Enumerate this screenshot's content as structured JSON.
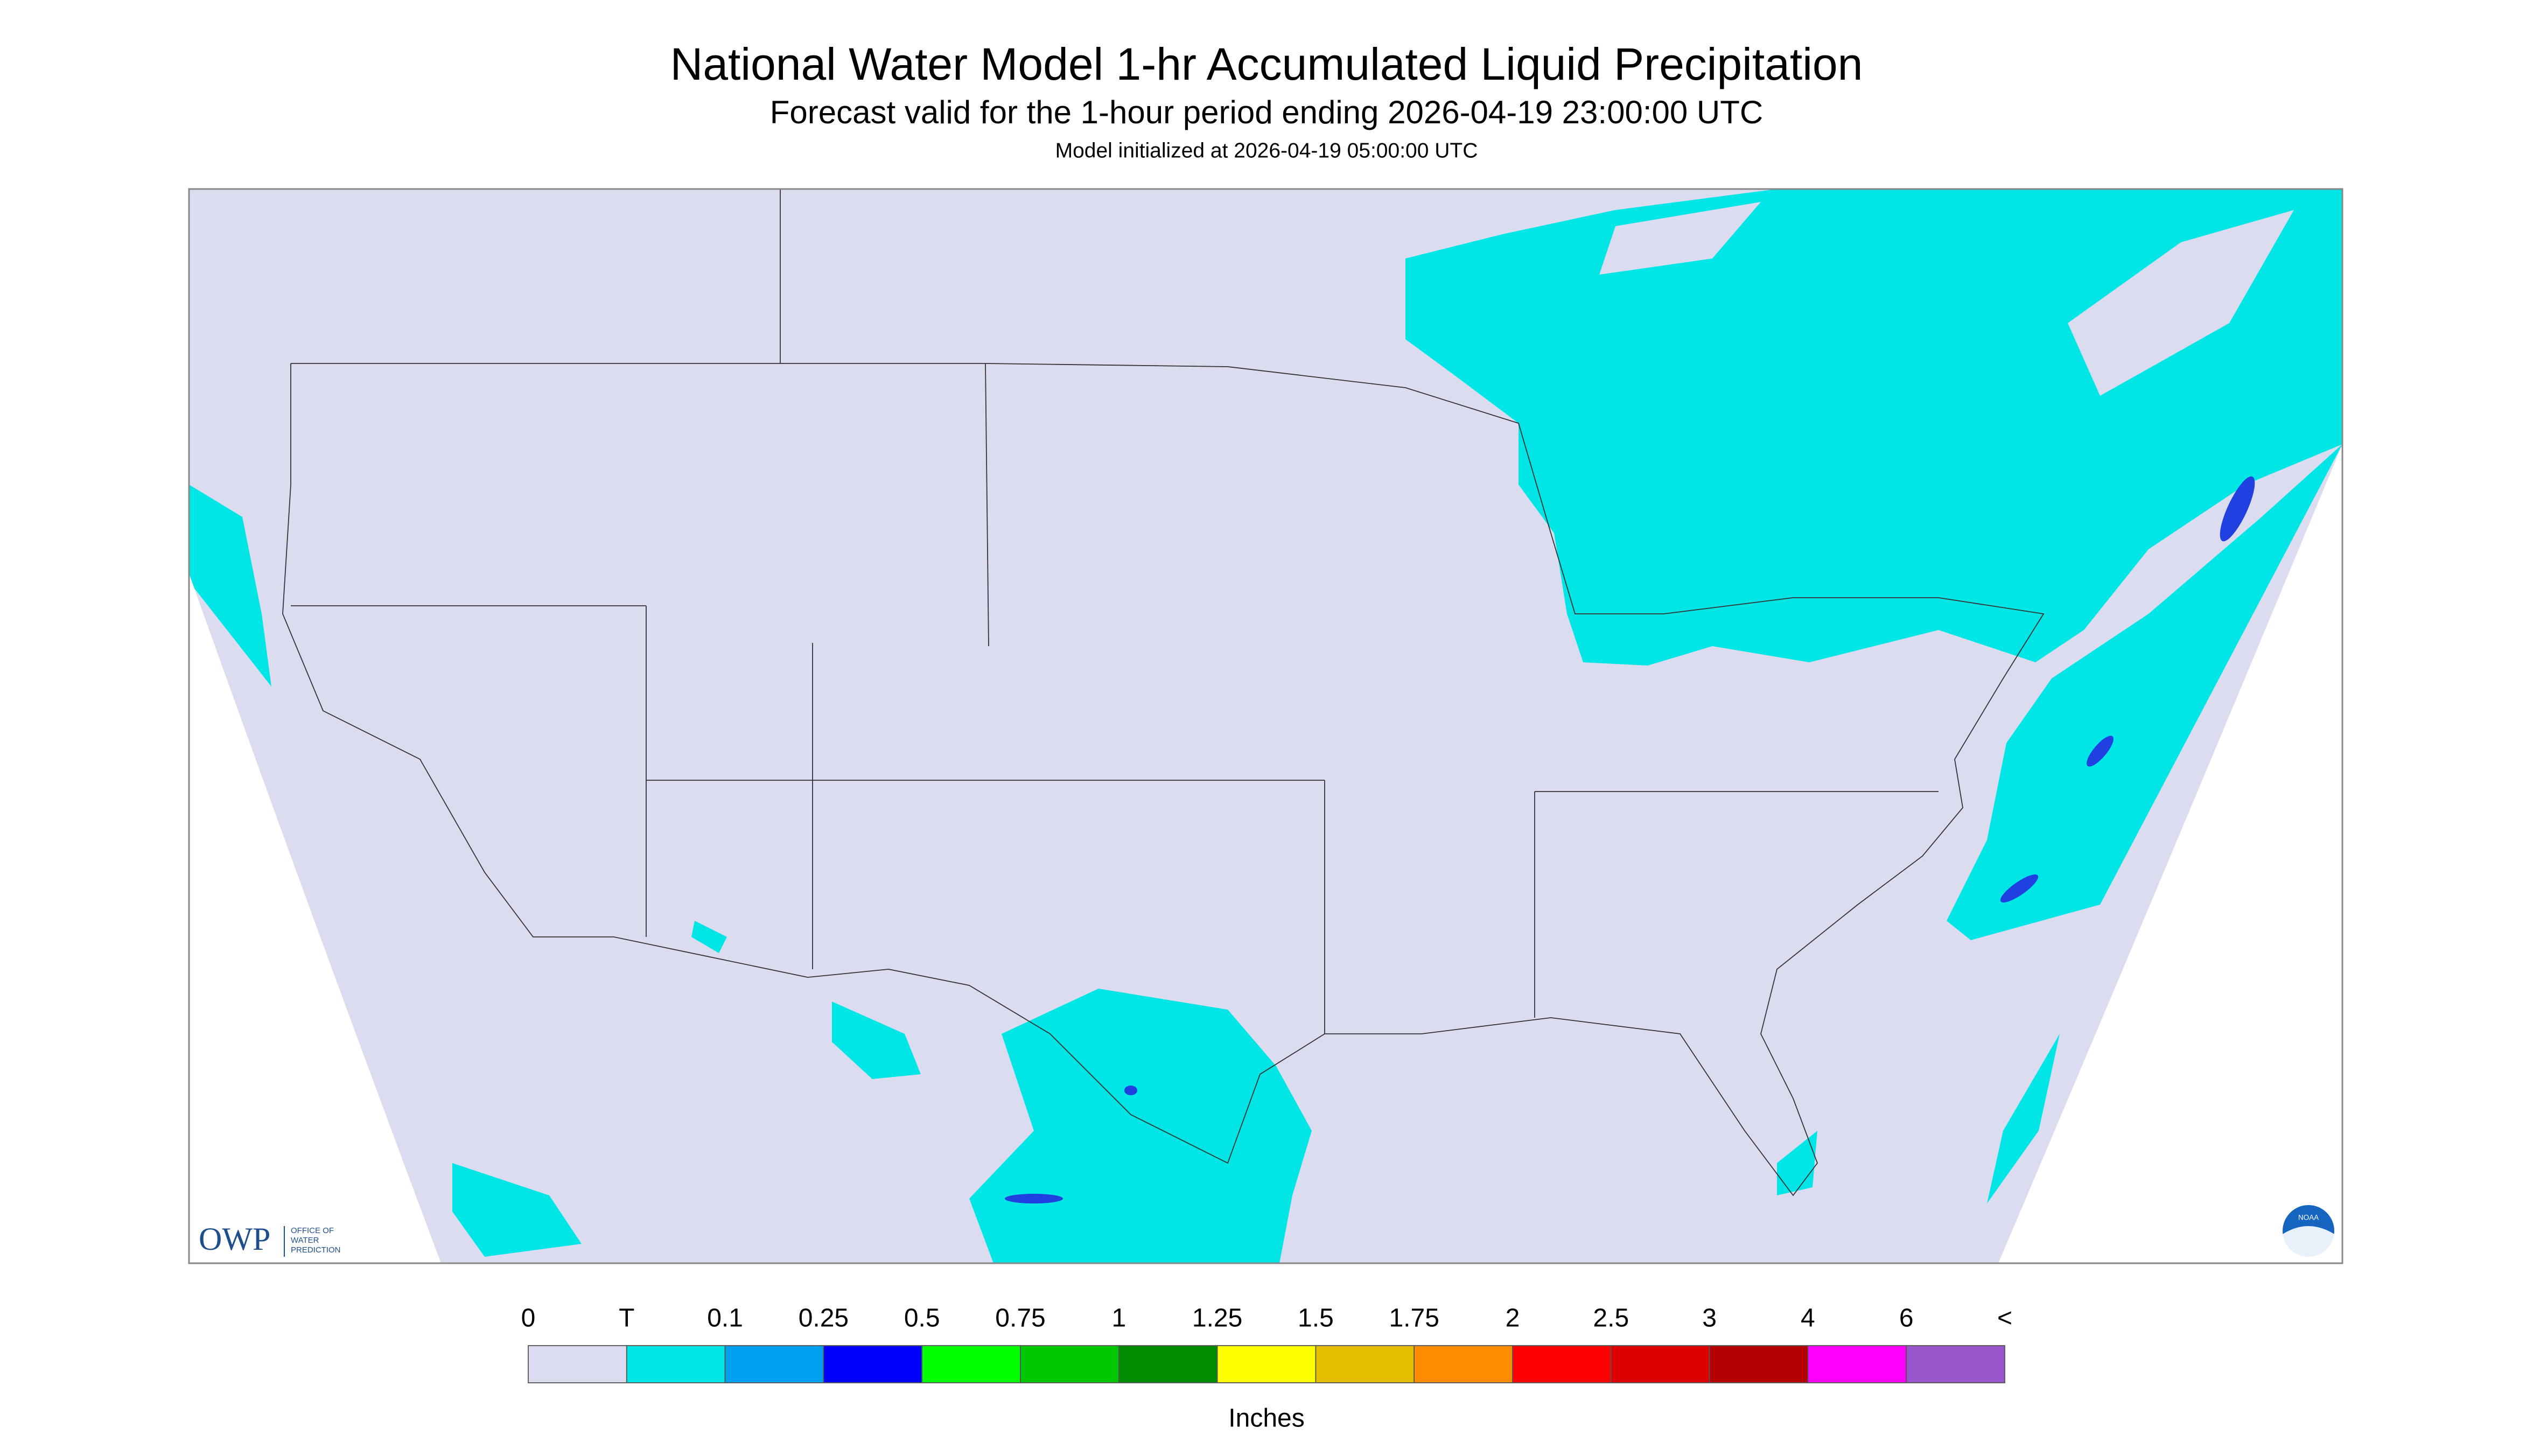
{
  "header": {
    "title": "National Water Model 1-hr Accumulated Liquid Precipitation",
    "subtitle": "Forecast valid for the 1-hour period ending 2026-04-19 23:00:00 UTC",
    "init": "Model initialized at 2026-04-19 05:00:00 UTC"
  },
  "logos": {
    "owp": "OWP",
    "owp_text": [
      "OFFICE OF",
      "WATER",
      "PREDICTION"
    ],
    "noaa": "NOAA"
  },
  "legend": {
    "labels": [
      "0",
      "T",
      "0.1",
      "0.25",
      "0.5",
      "0.75",
      "1",
      "1.25",
      "1.5",
      "1.75",
      "2",
      "2.5",
      "3",
      "4",
      "6",
      "<"
    ],
    "colors": [
      "#dcdcf0",
      "#00e6e6",
      "#00a0f0",
      "#0000ff",
      "#00ff00",
      "#00c800",
      "#008c00",
      "#ffff00",
      "#e6be00",
      "#ff8c00",
      "#ff0000",
      "#dc0000",
      "#b40000",
      "#ff00ff",
      "#9955cc"
    ],
    "unit": "Inches"
  }
}
